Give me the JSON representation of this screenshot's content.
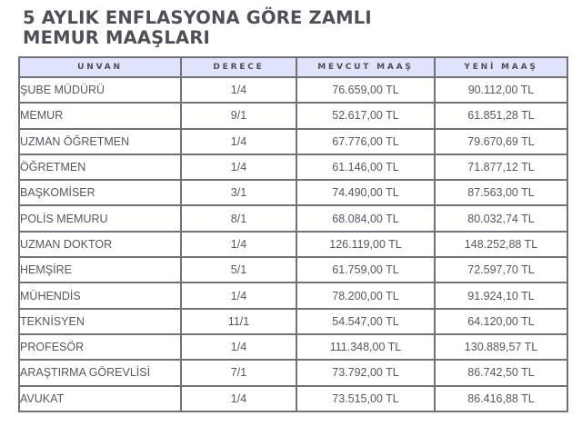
{
  "title": {
    "line1": "5 AYLIK ENFLASYONA GÖRE ZAMLI",
    "line2": "MEMUR MAAŞLARI"
  },
  "table": {
    "headers": [
      "UNVAN",
      "DERECE",
      "MEVCUT MAAŞ",
      "YENİ MAAŞ"
    ],
    "header_bg": "#dfe3fb",
    "border_color": "#6f7278",
    "rows": [
      {
        "unvan": "ŞUBE MÜDÜRÜ",
        "derece": "1/4",
        "mevcut": "76.659,00 TL",
        "yeni": "90.112,00 TL"
      },
      {
        "unvan": "MEMUR",
        "derece": "9/1",
        "mevcut": "52.617,00 TL",
        "yeni": "61.851,28 TL"
      },
      {
        "unvan": "UZMAN ÖĞRETMEN",
        "derece": "1/4",
        "mevcut": "67.776,00 TL",
        "yeni": "79.670,69 TL"
      },
      {
        "unvan": "ÖĞRETMEN",
        "derece": "1/4",
        "mevcut": "61.146,00 TL",
        "yeni": "71.877,12 TL"
      },
      {
        "unvan": "BAŞKOMİSER",
        "derece": "3/1",
        "mevcut": "74.490,00 TL",
        "yeni": "87.563,00 TL"
      },
      {
        "unvan": "POLİS MEMURU",
        "derece": "8/1",
        "mevcut": "68.084,00 TL",
        "yeni": "80.032,74 TL"
      },
      {
        "unvan": "UZMAN DOKTOR",
        "derece": "1/4",
        "mevcut": "126.119,00 TL",
        "yeni": "148.252,88 TL"
      },
      {
        "unvan": "HEMŞİRE",
        "derece": "5/1",
        "mevcut": "61.759,00 TL",
        "yeni": "72.597,70 TL"
      },
      {
        "unvan": "MÜHENDİS",
        "derece": "1/4",
        "mevcut": "78.200,00 TL",
        "yeni": "91.924,10 TL"
      },
      {
        "unvan": "TEKNİSYEN",
        "derece": "11/1",
        "mevcut": "54.547,00 TL",
        "yeni": "64.120,00 TL"
      },
      {
        "unvan": "PROFESÖR",
        "derece": "1/4",
        "mevcut": "111.348,00 TL",
        "yeni": "130.889,57 TL"
      },
      {
        "unvan": "ARAŞTIRMA GÖREVLİSİ",
        "derece": "7/1",
        "mevcut": "73.792,00 TL",
        "yeni": "86.742,50 TL"
      },
      {
        "unvan": "AVUKAT",
        "derece": "1/4",
        "mevcut": "73.515,00 TL",
        "yeni": "86.416,88 TL"
      }
    ]
  }
}
